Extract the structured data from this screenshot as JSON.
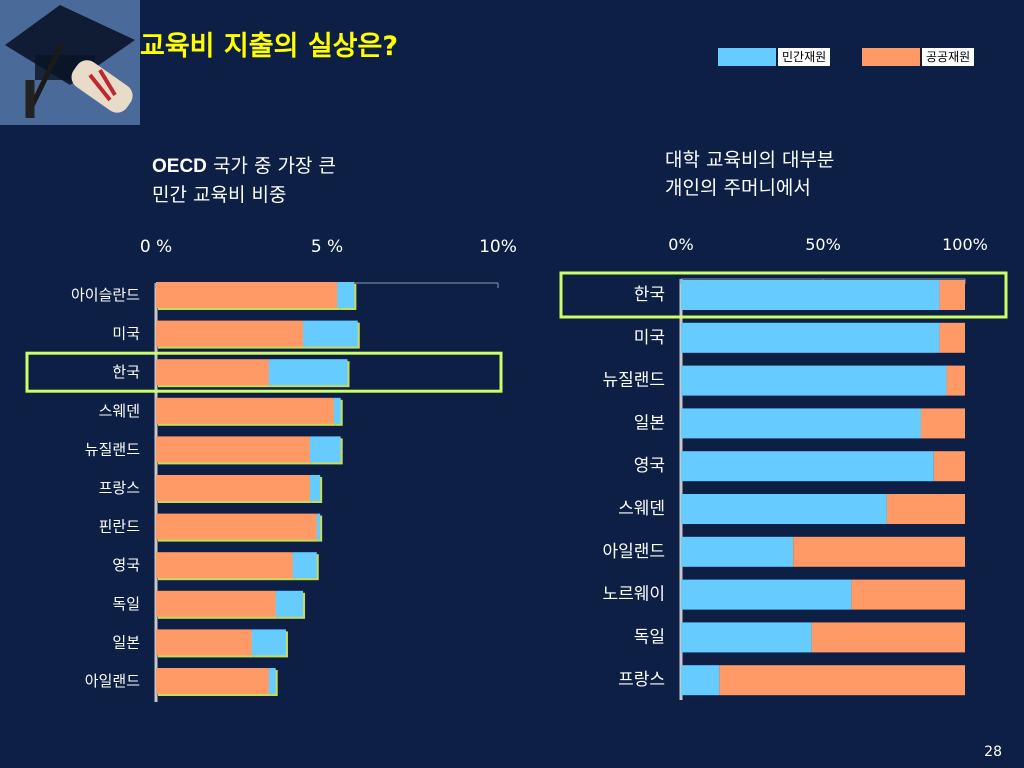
{
  "slide": {
    "title": "교육비 지출의 실상은?",
    "page_number": "28"
  },
  "legend": [
    {
      "label": "민간재원",
      "color": "#66ccff"
    },
    {
      "label": "공공재원",
      "color": "#ff9966"
    }
  ],
  "left_panel": {
    "subtitle_bold": "OECD",
    "subtitle_line1_rest": " 국가 중 가장 큰",
    "subtitle_line2": "민간 교육비 비중"
  },
  "right_panel": {
    "subtitle_line1": "대학 교육비의 대부분",
    "subtitle_line2": "개인의 주머니에서"
  },
  "chart_data": [
    {
      "type": "bar",
      "orientation": "horizontal",
      "stacked": true,
      "unit": "%",
      "xlim": [
        0,
        10
      ],
      "ticks": [
        "0 %",
        "5 %",
        "10%"
      ],
      "categories": [
        "아이슬란드",
        "미국",
        "한국",
        "스웨덴",
        "뉴질랜드",
        "프랑스",
        "핀란드",
        "영국",
        "독일",
        "일본",
        "아일랜드"
      ],
      "series": [
        {
          "name": "공공재원",
          "color": "#ff9966",
          "values": [
            5.3,
            4.3,
            3.3,
            5.2,
            4.5,
            4.5,
            4.7,
            4.0,
            3.5,
            2.8,
            3.3
          ]
        },
        {
          "name": "민간재원",
          "color": "#66ccff",
          "values": [
            0.5,
            1.6,
            2.3,
            0.2,
            0.9,
            0.3,
            0.1,
            0.7,
            0.8,
            1.0,
            0.2
          ]
        }
      ],
      "highlight": "한국"
    },
    {
      "type": "bar",
      "orientation": "horizontal",
      "stacked": true,
      "unit": "%",
      "xlim": [
        0,
        100
      ],
      "ticks": [
        "0%",
        "50%",
        "100%"
      ],
      "categories": [
        "한국",
        "미국",
        "뉴질랜드",
        "일본",
        "영국",
        "스웨덴",
        "아일랜드",
        "노르웨이",
        "독일",
        "프랑스"
      ],
      "series": [
        {
          "name": "민간재원",
          "color": "#66ccff",
          "values": [
            91,
            91,
            93.5,
            84.5,
            89,
            72.5,
            39.5,
            60,
            46,
            13.5
          ]
        },
        {
          "name": "공공재원",
          "color": "#ff9966",
          "values": [
            9,
            9,
            6.5,
            15.5,
            11,
            27.5,
            60.5,
            40,
            54,
            86.5
          ]
        }
      ],
      "highlight": "한국"
    }
  ]
}
